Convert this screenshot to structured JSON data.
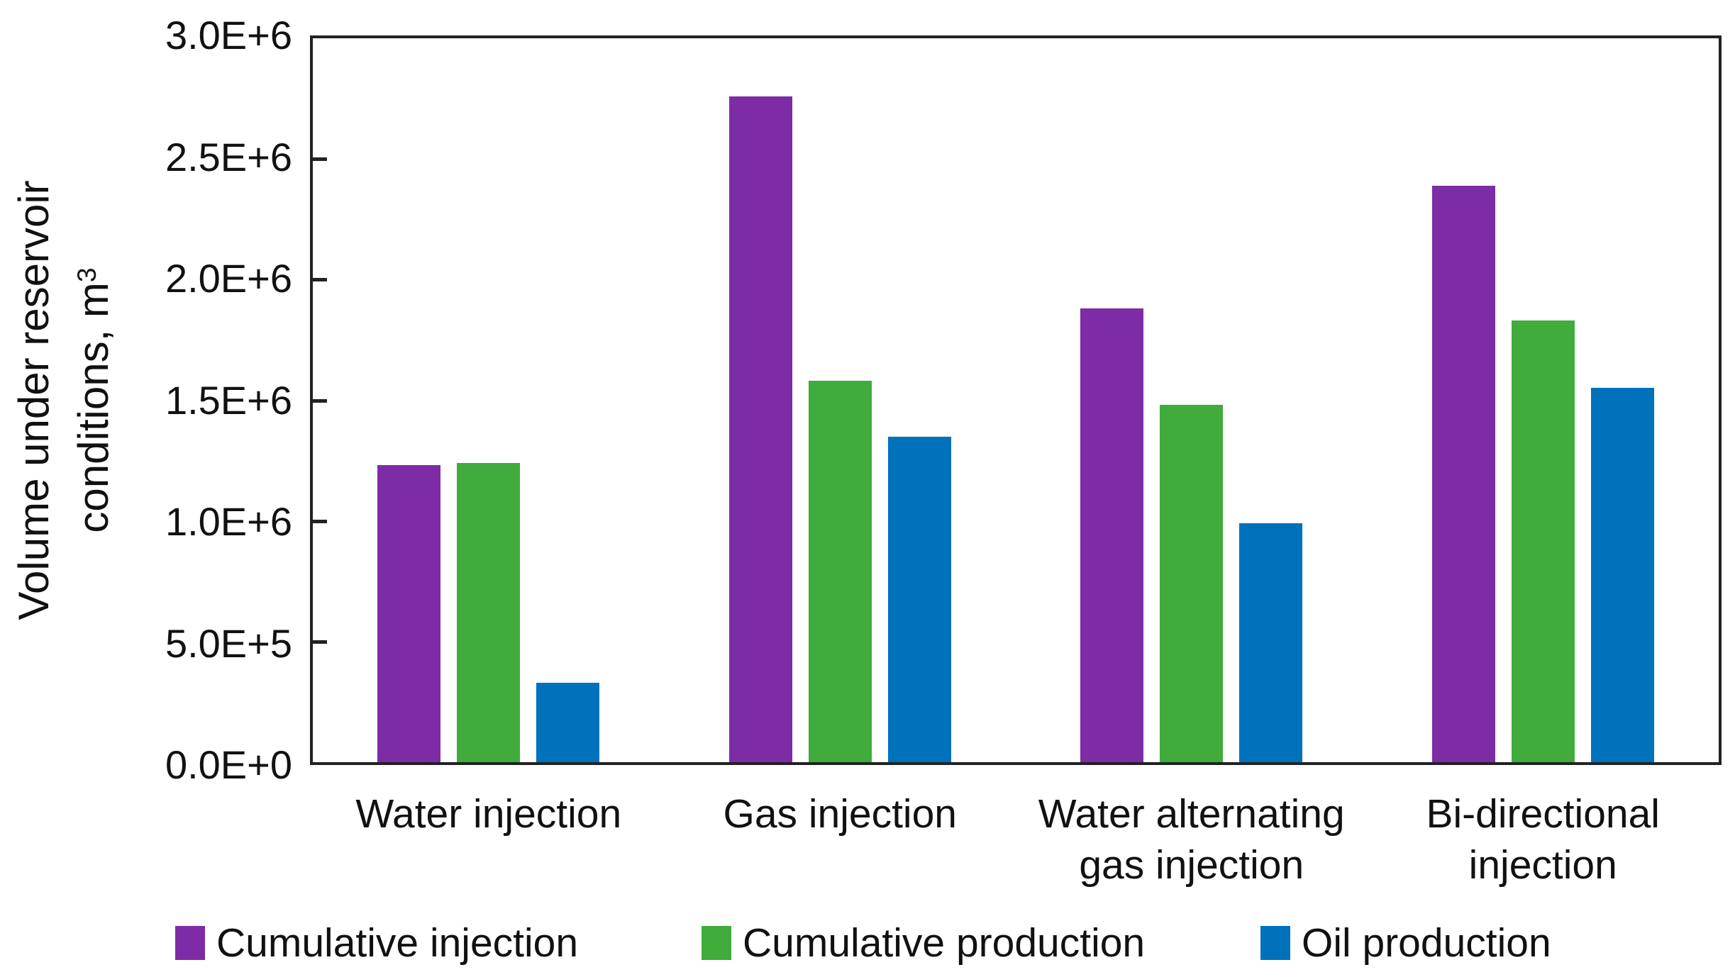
{
  "chart_data": {
    "type": "bar",
    "title": "",
    "ylabel_line1": "Volume under reservoir",
    "ylabel_line2_text": "conditions, m",
    "ylabel_superscript": "3",
    "ylim": [
      0,
      3000000
    ],
    "grid": false,
    "legend_position": "bottom",
    "y_ticks": [
      {
        "value": 0,
        "label": "0.0E+0"
      },
      {
        "value": 500000,
        "label": "5.0E+5"
      },
      {
        "value": 1000000,
        "label": "1.0E+6"
      },
      {
        "value": 1500000,
        "label": "1.5E+6"
      },
      {
        "value": 2000000,
        "label": "2.0E+6"
      },
      {
        "value": 2500000,
        "label": "2.5E+6"
      },
      {
        "value": 3000000,
        "label": "3.0E+6"
      }
    ],
    "categories": [
      {
        "lines": [
          "Water injection"
        ]
      },
      {
        "lines": [
          "Gas injection"
        ]
      },
      {
        "lines": [
          "Water alternating",
          "gas injection"
        ]
      },
      {
        "lines": [
          "Bi-directional",
          "injection"
        ]
      }
    ],
    "series": [
      {
        "name": "Cumulative injection",
        "color": "#7D2CA6",
        "values": [
          1230000,
          2760000,
          1880000,
          2390000
        ]
      },
      {
        "name": "Cumulative production",
        "color": "#3FAC3B",
        "values": [
          1240000,
          1580000,
          1480000,
          1830000
        ]
      },
      {
        "name": "Oil production",
        "color": "#0072BC",
        "values": [
          330000,
          1350000,
          990000,
          1550000
        ]
      }
    ]
  }
}
